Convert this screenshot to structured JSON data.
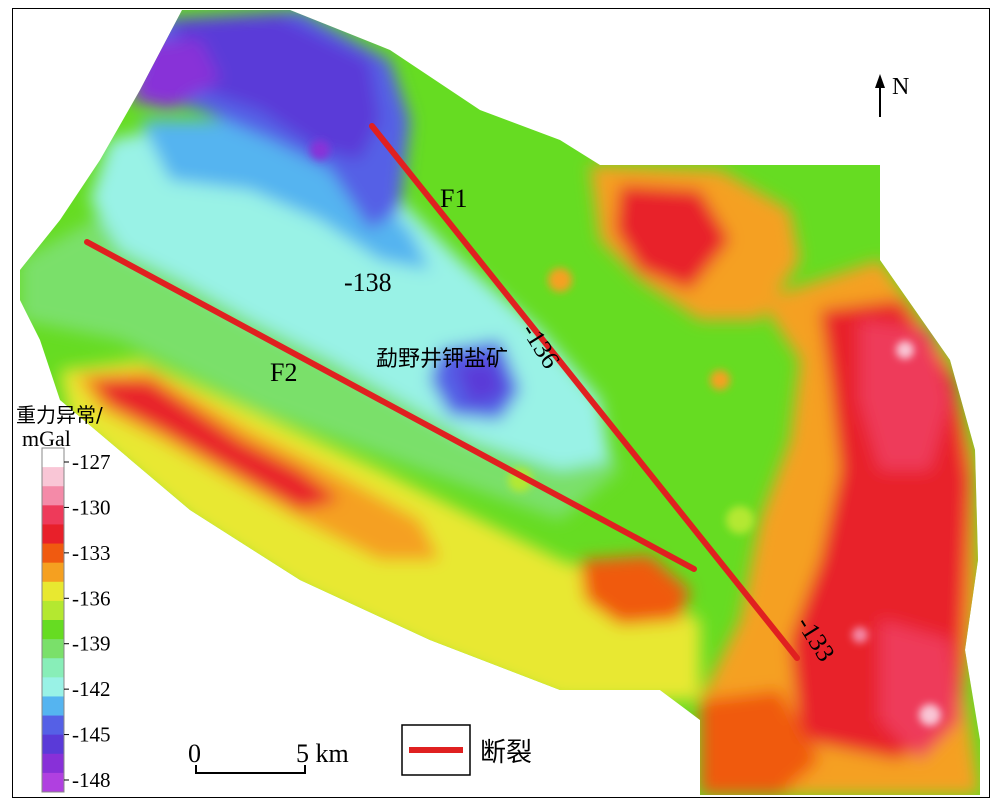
{
  "north": {
    "label": "N"
  },
  "faults": [
    {
      "label": "F1"
    },
    {
      "label": "F2"
    }
  ],
  "contour_labels": [
    "-138",
    "-136",
    "-133"
  ],
  "place_label": "勐野井钾盐矿",
  "scale_bar": {
    "start": "0",
    "end": "5 km"
  },
  "legend_fault": {
    "label": "断裂"
  },
  "colorbar": {
    "title_line1": "重力异常/",
    "title_line2": "mGal",
    "ticks": [
      "-127",
      "-130",
      "-133",
      "-136",
      "-139",
      "-142",
      "-145",
      "-148"
    ],
    "colors": [
      "#ffffff",
      "#f9c6d6",
      "#f48aa8",
      "#ee3a5a",
      "#e8202a",
      "#f05a10",
      "#f5a020",
      "#e8e830",
      "#b4e830",
      "#66dc22",
      "#7ae06a",
      "#88eeb8",
      "#99f2e6",
      "#55b4f0",
      "#5560e6",
      "#5a3ad8",
      "#8830d8",
      "#b040e0"
    ],
    "fault_color": "#e02020"
  }
}
